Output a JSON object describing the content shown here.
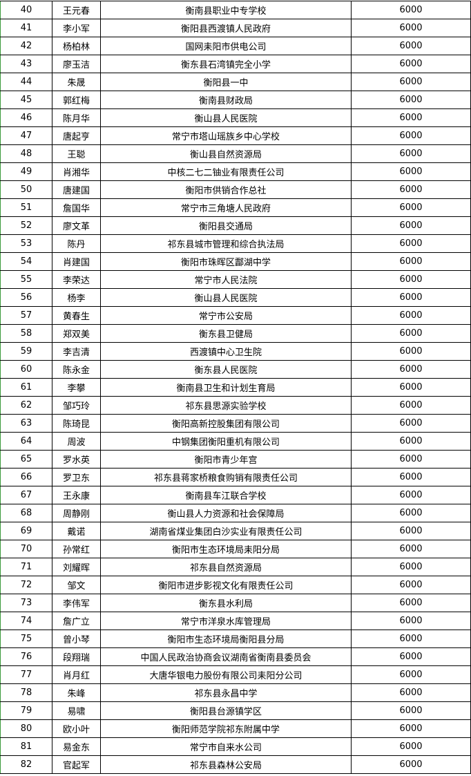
{
  "table": {
    "rows": [
      [
        40,
        "王元春",
        "衡南县职业中专学校",
        6000
      ],
      [
        41,
        "李小军",
        "衡阳县西渡镇人民政府",
        6000
      ],
      [
        42,
        "杨柏林",
        "国网耒阳市供电公司",
        6000
      ],
      [
        43,
        "廖玉洁",
        "衡东县石湾镇完全小学",
        6000
      ],
      [
        44,
        "朱晟",
        "衡阳县一中",
        6000
      ],
      [
        45,
        "郭红梅",
        "衡南县财政局",
        6000
      ],
      [
        46,
        "陈月华",
        "衡山县人民医院",
        6000
      ],
      [
        47,
        "唐起亨",
        "常宁市塔山瑶族乡中心学校",
        6000
      ],
      [
        48,
        "王聪",
        "衡山县自然资源局",
        6000
      ],
      [
        49,
        "肖湘华",
        "中核二七二铀业有限责任公司",
        6000
      ],
      [
        50,
        "唐建国",
        "衡阳市供销合作总社",
        6000
      ],
      [
        51,
        "詹国华",
        "常宁市三角塘人民政府",
        6000
      ],
      [
        52,
        "廖文革",
        "衡阳县交通局",
        6000
      ],
      [
        53,
        "陈丹",
        "祁东县城市管理和综合执法局",
        6000
      ],
      [
        54,
        "肖建国",
        "衡阳市珠晖区酃湖中学",
        6000
      ],
      [
        55,
        "李荣达",
        "常宁市人民法院",
        6000
      ],
      [
        56,
        "杨李",
        "衡山县人民医院",
        6000
      ],
      [
        57,
        "黄春生",
        "常宁市公安局",
        6000
      ],
      [
        58,
        "郑双美",
        "衡东县卫健局",
        6000
      ],
      [
        59,
        "李吉清",
        "西渡镇中心卫生院",
        6000
      ],
      [
        60,
        "陈永金",
        "衡东县人民医院",
        6000
      ],
      [
        61,
        "李攀",
        "衡南县卫生和计划生育局",
        6000
      ],
      [
        62,
        "邹巧玲",
        "祁东县思源实验学校",
        6000
      ],
      [
        63,
        "陈琦昆",
        "衡阳高新控股集团有限公司",
        6000
      ],
      [
        64,
        "周波",
        "中钢集团衡阳重机有限公司",
        6000
      ],
      [
        65,
        "罗水英",
        "衡阳市青少年宫",
        6000
      ],
      [
        66,
        "罗卫东",
        "祁东县蒋家桥粮食购销有限责任公司",
        6000
      ],
      [
        67,
        "王永康",
        "衡南县车江联合学校",
        6000
      ],
      [
        68,
        "周静刚",
        "衡山县人力资源和社会保障局",
        6000
      ],
      [
        69,
        "戴诺",
        "湖南省煤业集团白沙实业有限责任公司",
        6000
      ],
      [
        70,
        "孙常红",
        "衡阳市生态环境局耒阳分局",
        6000
      ],
      [
        71,
        "刘耀晖",
        "祁东县自然资源局",
        6000
      ],
      [
        72,
        "邹文",
        "衡阳市进步影视文化有限责任公司",
        6000
      ],
      [
        73,
        "李伟军",
        "衡东县水利局",
        6000
      ],
      [
        74,
        "詹广立",
        "常宁市洋泉水库管理局",
        6000
      ],
      [
        75,
        "曾小琴",
        "衡阳市生态环境局衡阳县分局",
        6000
      ],
      [
        76,
        "段翔瑞",
        "中国人民政治协商会议湖南省衡南县委员会",
        6000
      ],
      [
        77,
        "肖月红",
        "大唐华银电力股份有限公司耒阳分公司",
        6000
      ],
      [
        78,
        "朱峰",
        "祁东县永昌中学",
        6000
      ],
      [
        79,
        "易啸",
        "衡阳县台源镇学区",
        6000
      ],
      [
        80,
        "欧小叶",
        "衡阳师范学院祁东附属中学",
        6000
      ],
      [
        81,
        "易金东",
        "常宁市自来水公司",
        6000
      ],
      [
        82,
        "官起军",
        "祁东县森林公安局",
        6000
      ]
    ]
  }
}
